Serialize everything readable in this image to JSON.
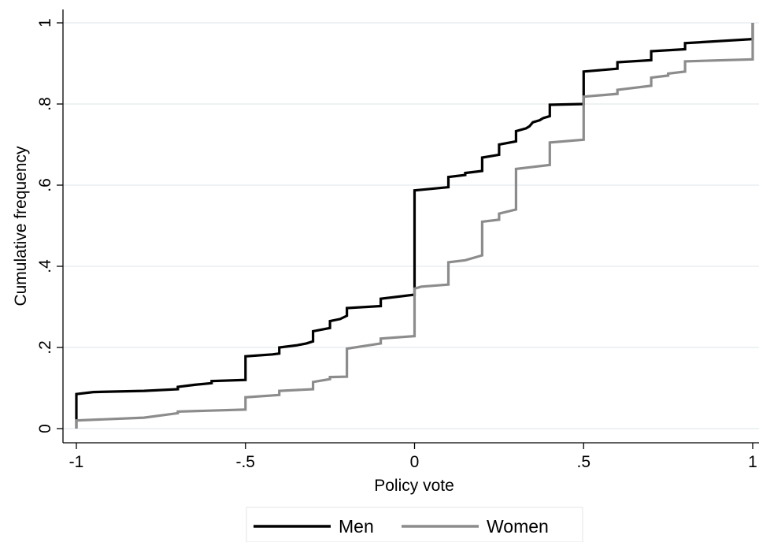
{
  "chart_data": {
    "type": "line",
    "subtype": "cumulative-step",
    "title": "",
    "xlabel": "Policy vote",
    "ylabel": "Cumulative frequency",
    "xlim": [
      -1,
      1
    ],
    "ylim": [
      0,
      1
    ],
    "x_ticks": [
      -1,
      -0.5,
      0,
      0.5,
      1
    ],
    "x_tick_labels": [
      "-1",
      "-.5",
      "0",
      ".5",
      "1"
    ],
    "y_ticks": [
      0,
      0.2,
      0.4,
      0.6,
      0.8,
      1
    ],
    "y_tick_labels": [
      "0",
      ".2",
      ".4",
      ".6",
      ".8",
      "1"
    ],
    "grid": "horizontal",
    "legend_position": "bottom",
    "series": [
      {
        "name": "Men",
        "color": "#000000",
        "points": [
          [
            -1,
            0.0
          ],
          [
            -1,
            0.085
          ],
          [
            -0.95,
            0.09
          ],
          [
            -0.8,
            0.093
          ],
          [
            -0.7,
            0.097
          ],
          [
            -0.7,
            0.103
          ],
          [
            -0.65,
            0.108
          ],
          [
            -0.6,
            0.112
          ],
          [
            -0.6,
            0.117
          ],
          [
            -0.5,
            0.12
          ],
          [
            -0.5,
            0.178
          ],
          [
            -0.42,
            0.183
          ],
          [
            -0.4,
            0.185
          ],
          [
            -0.4,
            0.2
          ],
          [
            -0.35,
            0.205
          ],
          [
            -0.32,
            0.21
          ],
          [
            -0.3,
            0.215
          ],
          [
            -0.3,
            0.24
          ],
          [
            -0.25,
            0.248
          ],
          [
            -0.25,
            0.265
          ],
          [
            -0.22,
            0.27
          ],
          [
            -0.2,
            0.278
          ],
          [
            -0.2,
            0.297
          ],
          [
            -0.1,
            0.302
          ],
          [
            -0.1,
            0.32
          ],
          [
            0,
            0.33
          ],
          [
            0,
            0.587
          ],
          [
            0.1,
            0.595
          ],
          [
            0.1,
            0.62
          ],
          [
            0.15,
            0.625
          ],
          [
            0.15,
            0.63
          ],
          [
            0.2,
            0.635
          ],
          [
            0.2,
            0.668
          ],
          [
            0.25,
            0.675
          ],
          [
            0.25,
            0.7
          ],
          [
            0.3,
            0.708
          ],
          [
            0.3,
            0.733
          ],
          [
            0.33,
            0.74
          ],
          [
            0.34,
            0.745
          ],
          [
            0.35,
            0.755
          ],
          [
            0.37,
            0.76
          ],
          [
            0.38,
            0.765
          ],
          [
            0.4,
            0.77
          ],
          [
            0.4,
            0.798
          ],
          [
            0.5,
            0.8
          ],
          [
            0.5,
            0.88
          ],
          [
            0.6,
            0.887
          ],
          [
            0.6,
            0.903
          ],
          [
            0.7,
            0.908
          ],
          [
            0.7,
            0.93
          ],
          [
            0.8,
            0.935
          ],
          [
            0.8,
            0.95
          ],
          [
            1,
            0.96
          ],
          [
            1,
            1.0
          ]
        ]
      },
      {
        "name": "Women",
        "color": "#8c8c8c",
        "points": [
          [
            -1,
            0.0
          ],
          [
            -1,
            0.02
          ],
          [
            -0.8,
            0.027
          ],
          [
            -0.7,
            0.038
          ],
          [
            -0.7,
            0.042
          ],
          [
            -0.5,
            0.047
          ],
          [
            -0.5,
            0.077
          ],
          [
            -0.4,
            0.083
          ],
          [
            -0.4,
            0.093
          ],
          [
            -0.3,
            0.097
          ],
          [
            -0.3,
            0.115
          ],
          [
            -0.25,
            0.122
          ],
          [
            -0.25,
            0.127
          ],
          [
            -0.2,
            0.128
          ],
          [
            -0.2,
            0.197
          ],
          [
            -0.1,
            0.21
          ],
          [
            -0.1,
            0.222
          ],
          [
            0,
            0.228
          ],
          [
            0,
            0.345
          ],
          [
            0.02,
            0.35
          ],
          [
            0.1,
            0.355
          ],
          [
            0.1,
            0.41
          ],
          [
            0.15,
            0.415
          ],
          [
            0.2,
            0.427
          ],
          [
            0.2,
            0.51
          ],
          [
            0.25,
            0.515
          ],
          [
            0.25,
            0.53
          ],
          [
            0.3,
            0.54
          ],
          [
            0.3,
            0.64
          ],
          [
            0.4,
            0.65
          ],
          [
            0.4,
            0.705
          ],
          [
            0.5,
            0.712
          ],
          [
            0.5,
            0.818
          ],
          [
            0.6,
            0.825
          ],
          [
            0.6,
            0.835
          ],
          [
            0.7,
            0.845
          ],
          [
            0.7,
            0.865
          ],
          [
            0.75,
            0.87
          ],
          [
            0.75,
            0.875
          ],
          [
            0.8,
            0.88
          ],
          [
            0.8,
            0.905
          ],
          [
            1,
            0.91
          ],
          [
            1,
            1.0
          ]
        ]
      }
    ]
  }
}
